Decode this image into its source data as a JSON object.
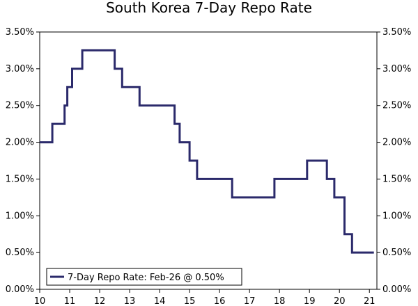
{
  "chart_data": {
    "type": "line",
    "title": "South Korea 7-Day Repo Rate",
    "xlim": [
      10,
      21.25
    ],
    "ylim": [
      0,
      3.5
    ],
    "x_ticks": [
      10,
      11,
      12,
      13,
      14,
      15,
      16,
      17,
      18,
      19,
      20,
      21
    ],
    "x_tick_labels": [
      "10",
      "11",
      "12",
      "13",
      "14",
      "15",
      "16",
      "17",
      "18",
      "19",
      "20",
      "21"
    ],
    "y_ticks": [
      0,
      0.5,
      1.0,
      1.5,
      2.0,
      2.5,
      3.0,
      3.5
    ],
    "y_tick_labels": [
      "0.00%",
      "0.50%",
      "1.00%",
      "1.50%",
      "2.00%",
      "2.50%",
      "3.00%",
      "3.50%"
    ],
    "grid": false,
    "legend_position": "bottom-left",
    "series": [
      {
        "name": "7-Day Repo Rate: Feb-26 @ 0.50%",
        "color": "#2b2a6b",
        "step": true,
        "points": [
          [
            10.0,
            2.0
          ],
          [
            10.42,
            2.25
          ],
          [
            10.83,
            2.5
          ],
          [
            10.92,
            2.75
          ],
          [
            11.08,
            3.0
          ],
          [
            11.42,
            3.25
          ],
          [
            12.5,
            3.0
          ],
          [
            12.75,
            2.75
          ],
          [
            13.33,
            2.5
          ],
          [
            14.5,
            2.25
          ],
          [
            14.67,
            2.0
          ],
          [
            15.0,
            1.75
          ],
          [
            15.25,
            1.5
          ],
          [
            16.42,
            1.25
          ],
          [
            17.83,
            1.5
          ],
          [
            18.92,
            1.75
          ],
          [
            19.58,
            1.5
          ],
          [
            19.83,
            1.25
          ],
          [
            20.17,
            0.75
          ],
          [
            20.42,
            0.5
          ],
          [
            21.15,
            0.5
          ]
        ]
      }
    ]
  }
}
